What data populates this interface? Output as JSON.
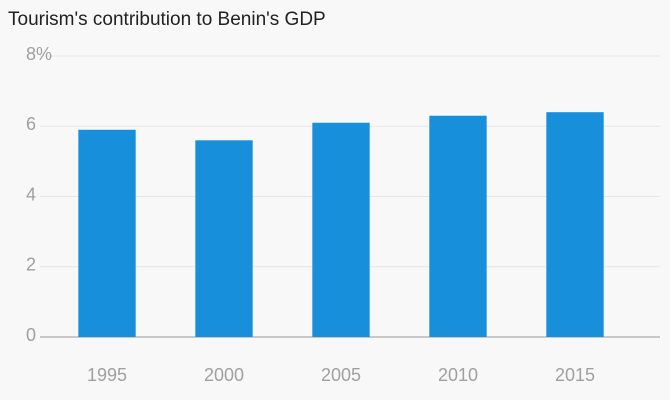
{
  "chart_data": {
    "type": "bar",
    "title": "Tourism's contribution to Benin's GDP",
    "categories": [
      "1995",
      "2000",
      "2005",
      "2010",
      "2015"
    ],
    "values": [
      5.9,
      5.6,
      6.1,
      6.3,
      6.4
    ],
    "color": "#178fdb",
    "ylim": [
      0,
      8
    ],
    "yticks": [
      0,
      2,
      4,
      6,
      {
        "value": 8,
        "label": "8%"
      }
    ],
    "grid": true
  }
}
